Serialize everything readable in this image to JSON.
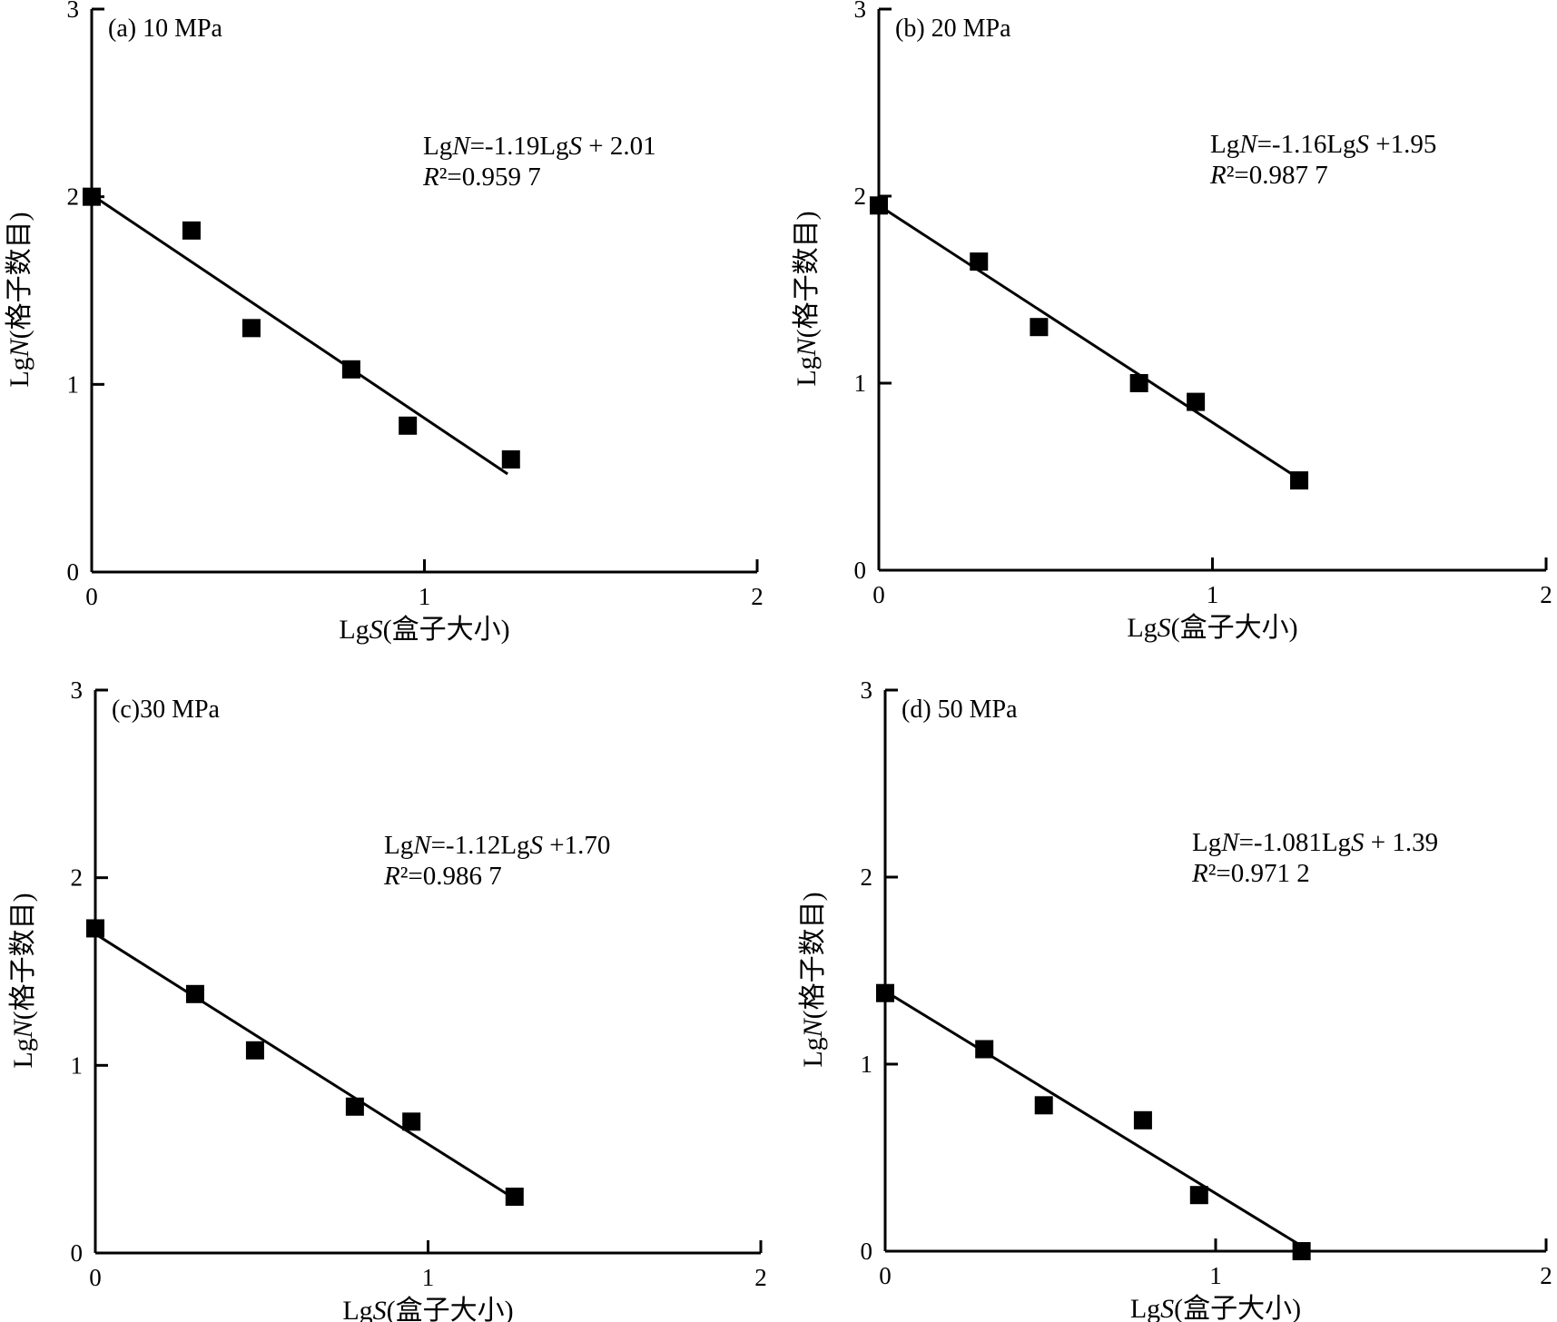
{
  "chart_data": [
    {
      "type": "scatter",
      "panel_label": "(a) 10 MPa",
      "xlabel": "LgS(盒子大小)",
      "ylabel": "LgN(格子数目)",
      "xlim": [
        0,
        2
      ],
      "ylim": [
        0,
        3
      ],
      "xticks": [
        "0",
        "1",
        "2"
      ],
      "yticks": [
        "0",
        "1",
        "2",
        "3"
      ],
      "equation": "LgN=-1.19LgS + 2.01",
      "r2": "R²=0.959 7",
      "points": [
        [
          0,
          2.0
        ],
        [
          0.3,
          1.82
        ],
        [
          0.48,
          1.3
        ],
        [
          0.78,
          1.08
        ],
        [
          0.95,
          0.78
        ],
        [
          1.26,
          0.6
        ]
      ],
      "fit": {
        "slope": -1.19,
        "intercept": 2.01,
        "x_range": [
          0,
          1.25
        ]
      }
    },
    {
      "type": "scatter",
      "panel_label": "(b) 20 MPa",
      "xlabel": "LgS(盒子大小)",
      "ylabel": "LgN(格子数目)",
      "xlim": [
        0,
        2
      ],
      "ylim": [
        0,
        3
      ],
      "xticks": [
        "0",
        "1",
        "2"
      ],
      "yticks": [
        "0",
        "1",
        "2",
        "3"
      ],
      "equation": "LgN=-1.16LgS +1.95",
      "r2": "R²=0.987 7",
      "points": [
        [
          0,
          1.95
        ],
        [
          0.3,
          1.65
        ],
        [
          0.48,
          1.3
        ],
        [
          0.78,
          1.0
        ],
        [
          0.95,
          0.9
        ],
        [
          1.26,
          0.48
        ]
      ],
      "fit": {
        "slope": -1.16,
        "intercept": 1.95,
        "x_range": [
          0,
          1.25
        ]
      }
    },
    {
      "type": "scatter",
      "panel_label": "(c)30 MPa",
      "xlabel": "LgS(盒子大小)",
      "ylabel": "LgN(格子数目)",
      "xlim": [
        0,
        2
      ],
      "ylim": [
        0,
        3
      ],
      "xticks": [
        "0",
        "1",
        "2"
      ],
      "yticks": [
        "0",
        "1",
        "2",
        "3"
      ],
      "equation": "LgN=-1.12LgS +1.70",
      "r2": "R²=0.986 7",
      "points": [
        [
          0,
          1.73
        ],
        [
          0.3,
          1.38
        ],
        [
          0.48,
          1.08
        ],
        [
          0.78,
          0.78
        ],
        [
          0.95,
          0.7
        ],
        [
          1.26,
          0.3
        ]
      ],
      "fit": {
        "slope": -1.12,
        "intercept": 1.7,
        "x_range": [
          0,
          1.25
        ]
      }
    },
    {
      "type": "scatter",
      "panel_label": "(d) 50 MPa",
      "xlabel": "LgS(盒子大小)",
      "ylabel": "LgN(格子数目)",
      "xlim": [
        0,
        2
      ],
      "ylim": [
        0,
        3
      ],
      "xticks": [
        "0",
        "1",
        "2"
      ],
      "yticks": [
        "0",
        "1",
        "2",
        "3"
      ],
      "equation": "LgN=-1.081LgS + 1.39",
      "r2": "R²=0.971 2",
      "points": [
        [
          0,
          1.38
        ],
        [
          0.3,
          1.08
        ],
        [
          0.48,
          0.78
        ],
        [
          0.78,
          0.7
        ],
        [
          0.95,
          0.3
        ],
        [
          1.26,
          0.0
        ]
      ],
      "fit": {
        "slope": -1.081,
        "intercept": 1.39,
        "x_range": [
          0,
          1.25
        ]
      }
    }
  ]
}
